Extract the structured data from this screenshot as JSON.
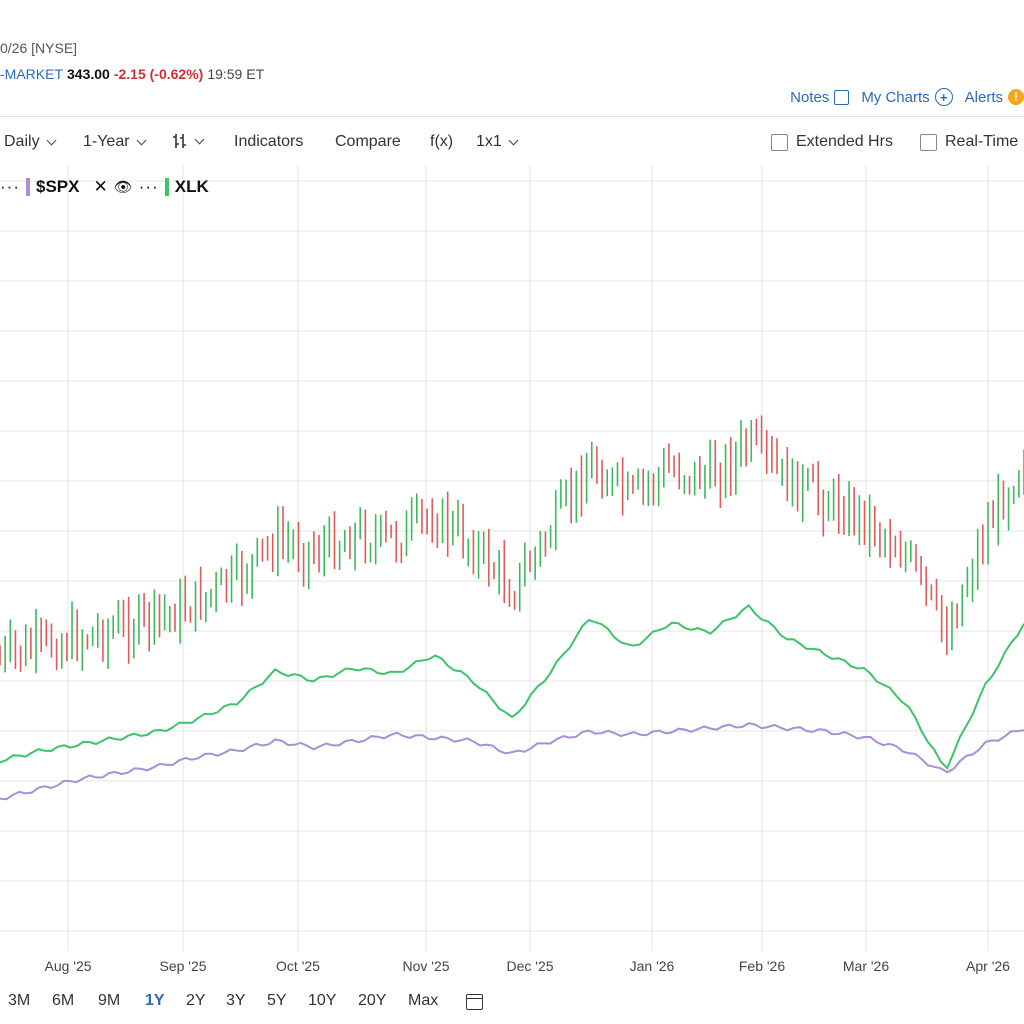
{
  "header": {
    "date_exchange": "0/26 [NYSE]",
    "market_label": "-MARKET",
    "price": "343.00",
    "change": "-2.15 (-0.62%)",
    "time": "19:59 ET"
  },
  "top_links": {
    "notes": "Notes",
    "my_charts": "My Charts",
    "alerts": "Alerts"
  },
  "toolbar": {
    "interval": "Daily",
    "period": "1-Year",
    "indicators": "Indicators",
    "compare": "Compare",
    "fx": "f(x)",
    "layout": "1x1",
    "extended_hrs": "Extended Hrs",
    "real_time": "Real-Time"
  },
  "legend": {
    "more": "···",
    "spx": "$SPX",
    "xlk": "XLK",
    "spx_color": "#a88fd8",
    "xlk_color": "#3cc46a"
  },
  "ranges": [
    "3M",
    "6M",
    "9M",
    "1Y",
    "2Y",
    "3Y",
    "5Y",
    "10Y",
    "20Y",
    "Max"
  ],
  "active_range": "1Y",
  "colors": {
    "up": "#3cba5a",
    "down": "#e05a5a",
    "spx": "#a88fd8",
    "xlk": "#3cc46a",
    "accent": "#2a6bb8"
  },
  "chart_data": {
    "type": "line",
    "x_ticks": [
      "Aug '25",
      "Sep '25",
      "Oct '25",
      "Nov '25",
      "Dec '25",
      "Jan '26",
      "Feb '26",
      "Mar '26",
      "Apr '26"
    ],
    "grid": true,
    "series": [
      {
        "name": "$SPX",
        "values": [
          12,
          15,
          18,
          20,
          22,
          25,
          27,
          30,
          28,
          30,
          32,
          31,
          30,
          26,
          30,
          33,
          32,
          33,
          34,
          35,
          34,
          33,
          31,
          27,
          20,
          29,
          34
        ]
      },
      {
        "name": "XLK",
        "values": [
          17,
          20,
          22,
          24,
          26,
          30,
          35,
          45,
          42,
          46,
          44,
          50,
          42,
          30,
          45,
          62,
          52,
          60,
          57,
          65,
          55,
          50,
          45,
          35,
          14,
          40,
          60
        ]
      }
    ]
  }
}
